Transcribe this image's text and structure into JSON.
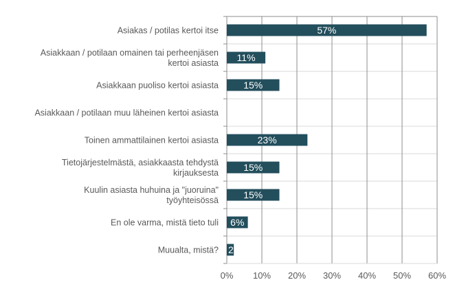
{
  "chart_data": {
    "type": "bar",
    "orientation": "horizontal",
    "categories": [
      [
        "Asiakas / potilas kertoi itse"
      ],
      [
        "Asiakkaan / potilaan omainen tai perheenjäsen",
        "kertoi asiasta"
      ],
      [
        "Asiakkaan puoliso kertoi asiasta"
      ],
      [
        "Asiakkaan / potilaan muu läheinen kertoi asiasta"
      ],
      [
        "Toinen ammattilainen kertoi asiasta"
      ],
      [
        "Tietojärjestelmästä, asiakkaasta tehdystä",
        "kirjauksesta"
      ],
      [
        "Kuulin asiasta huhuina ja \"juoruina\"",
        "työyhteisössä"
      ],
      [
        "En ole varma, mistä tieto tuli"
      ],
      [
        "Muualta, mistä?"
      ]
    ],
    "values": [
      57,
      11,
      15,
      0,
      23,
      15,
      15,
      6,
      2
    ],
    "data_labels": [
      "57%",
      "11%",
      "15%",
      "",
      "23%",
      "15%",
      "15%",
      "6%",
      "2"
    ],
    "xlim": [
      0,
      60
    ],
    "xticks": [
      "0%",
      "10%",
      "20%",
      "30%",
      "40%",
      "50%",
      "60%"
    ],
    "grid": true,
    "title": "",
    "xlabel": "",
    "ylabel": "",
    "bar_color": "#234e5c"
  }
}
